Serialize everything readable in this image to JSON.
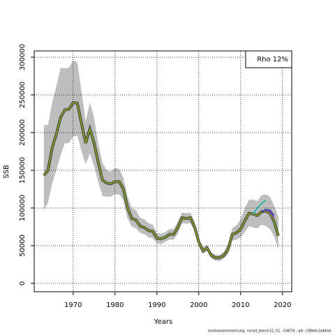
{
  "chart_data": {
    "type": "line",
    "xlabel": "Years",
    "ylabel": "SSB",
    "legend_text": "Rho 12%",
    "legend": "upper right",
    "footer": "stockassessment.org, nscod_bench21_01, r14074 , git: c28bdc2a44ad",
    "grid": true,
    "xlim": [
      1960.7,
      2022.2
    ],
    "ylim": [
      -11100,
      308300
    ],
    "xticks": [
      1970,
      1980,
      1990,
      2000,
      2010,
      2020
    ],
    "yticks": [
      0,
      50000,
      100000,
      150000,
      200000,
      250000,
      300000
    ],
    "x": [
      1963,
      1964,
      1965,
      1966,
      1967,
      1968,
      1969,
      1970,
      1971,
      1972,
      1973,
      1974,
      1975,
      1976,
      1977,
      1978,
      1979,
      1980,
      1981,
      1982,
      1983,
      1984,
      1985,
      1986,
      1987,
      1988,
      1989,
      1990,
      1991,
      1992,
      1993,
      1994,
      1995,
      1996,
      1997,
      1998,
      1999,
      2000,
      2001,
      2002,
      2003,
      2004,
      2005,
      2006,
      2007,
      2008,
      2009,
      2010,
      2011,
      2012,
      2013,
      2014,
      2015,
      2016,
      2017,
      2018,
      2019
    ],
    "band": {
      "color": "#bebebe",
      "upper": [
        210000,
        210000,
        240000,
        262000,
        286000,
        285000,
        286000,
        296000,
        293000,
        255000,
        215000,
        240000,
        220000,
        185000,
        160000,
        150000,
        148000,
        153000,
        152000,
        140000,
        115000,
        100000,
        97000,
        87000,
        85000,
        80000,
        78000,
        67000,
        66000,
        68000,
        72000,
        72000,
        82000,
        94000,
        93000,
        94000,
        81000,
        60000,
        48000,
        51000,
        41000,
        38000,
        38000,
        42000,
        52000,
        73000,
        77000,
        85000,
        100000,
        111000,
        111000,
        109000,
        117000,
        118000,
        115000,
        103000,
        88000
      ],
      "lower": [
        97000,
        107000,
        133000,
        150000,
        170000,
        186000,
        186000,
        195000,
        196000,
        175000,
        158000,
        172000,
        156000,
        134000,
        116000,
        115000,
        115000,
        118000,
        118000,
        110000,
        86000,
        75000,
        73000,
        67000,
        65000,
        61000,
        60000,
        53000,
        52000,
        55000,
        58000,
        58000,
        66000,
        80000,
        79000,
        80000,
        69000,
        50000,
        39000,
        43000,
        33000,
        30000,
        30000,
        33000,
        39000,
        57000,
        58000,
        61000,
        68000,
        76000,
        74000,
        73000,
        78000,
        76000,
        72000,
        62000,
        45000
      ]
    },
    "series": [
      {
        "color": "#7f9a26",
        "outline": "#404040",
        "values": [
          143000,
          150000,
          180000,
          198000,
          220000,
          230000,
          231000,
          240000,
          239000,
          212000,
          186000,
          205000,
          186000,
          160000,
          137000,
          133000,
          132000,
          135000,
          135000,
          125000,
          100000,
          86000,
          84000,
          76000,
          74000,
          70000,
          69000,
          60000,
          59000,
          61000,
          65000,
          65000,
          74000,
          87000,
          86000,
          87000,
          75000,
          55000,
          43000,
          47000,
          37000,
          34000,
          34000,
          37000,
          45000,
          65000,
          67000,
          72000,
          83000,
          93000,
          92000,
          90000,
          95000,
          96000,
          93000,
          82000,
          63000
        ]
      },
      {
        "color": "#20b2aa",
        "values": [
          null,
          null,
          null,
          null,
          null,
          null,
          null,
          null,
          null,
          null,
          null,
          null,
          null,
          null,
          null,
          null,
          null,
          null,
          null,
          null,
          null,
          null,
          null,
          null,
          null,
          null,
          null,
          null,
          null,
          null,
          null,
          null,
          null,
          null,
          null,
          null,
          null,
          null,
          null,
          null,
          null,
          null,
          null,
          null,
          null,
          null,
          null,
          null,
          null,
          null,
          92000,
          100000,
          106000,
          110000,
          null,
          null,
          null
        ]
      },
      {
        "color": "#2f3fb0",
        "values": [
          null,
          null,
          null,
          null,
          null,
          null,
          null,
          null,
          null,
          null,
          null,
          null,
          null,
          null,
          null,
          null,
          null,
          null,
          null,
          null,
          null,
          null,
          null,
          null,
          null,
          null,
          null,
          null,
          null,
          null,
          null,
          null,
          null,
          null,
          null,
          null,
          null,
          null,
          null,
          null,
          null,
          null,
          null,
          null,
          null,
          null,
          null,
          null,
          null,
          null,
          null,
          null,
          95000,
          98000,
          97000,
          90000,
          null
        ]
      },
      {
        "color": "#7a3fa0",
        "values": [
          null,
          null,
          null,
          null,
          null,
          null,
          null,
          null,
          null,
          null,
          null,
          null,
          null,
          null,
          null,
          null,
          null,
          null,
          null,
          null,
          null,
          null,
          null,
          null,
          null,
          null,
          null,
          null,
          null,
          null,
          null,
          null,
          null,
          null,
          null,
          null,
          null,
          null,
          null,
          null,
          null,
          null,
          null,
          null,
          null,
          null,
          null,
          null,
          null,
          null,
          null,
          null,
          null,
          97000,
          95000,
          86000,
          null
        ]
      }
    ]
  }
}
